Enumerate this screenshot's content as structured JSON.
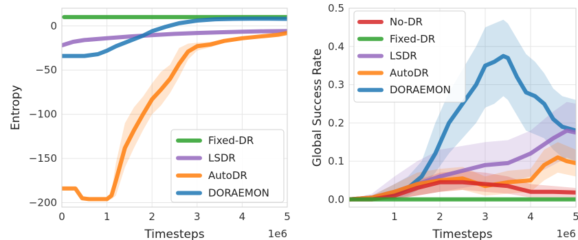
{
  "colors": {
    "No-DR": "#d62728",
    "Fixed-DR": "#2ca02c",
    "LSDR": "#9467bd",
    "AutoDR": "#ff7f0e",
    "DORAEMON": "#1f77b4"
  },
  "chart_data": [
    {
      "type": "line",
      "ylabel": "Entropy",
      "xlabel": "Timesteps",
      "x_scale_label": "1e6",
      "xlim": [
        0,
        5
      ],
      "ylim": [
        -205,
        20
      ],
      "x_ticks": [
        0,
        1,
        2,
        3,
        4,
        5
      ],
      "x_tick_labels": [
        "0",
        "1",
        "2",
        "3",
        "4",
        "5"
      ],
      "y_ticks": [
        0,
        -50,
        -100,
        -150,
        -200
      ],
      "y_tick_labels": [
        "0",
        "−50",
        "−100",
        "−150",
        "−200"
      ],
      "grid": true,
      "legend_position": "lower-right",
      "legend": [
        "Fixed-DR",
        "LSDR",
        "AutoDR",
        "DORAEMON"
      ],
      "series": [
        {
          "name": "Fixed-DR",
          "x": [
            0.05,
            5.0
          ],
          "y": [
            10,
            10
          ]
        },
        {
          "name": "LSDR",
          "x": [
            0,
            0.25,
            0.5,
            1.0,
            1.5,
            2.0,
            2.5,
            3.0,
            3.5,
            4.0,
            4.5,
            5.0
          ],
          "y": [
            -22,
            -18,
            -16,
            -14,
            -12,
            -10.5,
            -9,
            -8,
            -7.2,
            -6.6,
            -6.1,
            -5.8
          ]
        },
        {
          "name": "DORAEMON",
          "x": [
            0,
            0.5,
            0.8,
            1.0,
            1.2,
            1.5,
            1.8,
            2.0,
            2.3,
            2.6,
            3.0,
            3.4,
            3.8,
            4.2,
            4.6,
            5.0
          ],
          "y": [
            -34,
            -34,
            -32,
            -28,
            -23,
            -17,
            -11,
            -6,
            -1,
            3,
            6,
            7.5,
            8,
            8.2,
            8.2,
            8
          ],
          "band_lower": [
            -34,
            -34,
            -32,
            -28,
            -23,
            -17,
            -11,
            -6,
            -1,
            3,
            6,
            7.5,
            8,
            8.2,
            8.2,
            8
          ],
          "band_upper": [
            -34,
            -34,
            -32,
            -28,
            -23,
            -17,
            -11,
            -6,
            -1,
            3,
            6,
            7.5,
            8,
            8.2,
            8.2,
            8
          ]
        },
        {
          "name": "AutoDR",
          "x": [
            0,
            0.3,
            0.45,
            0.6,
            0.8,
            1.0,
            1.1,
            1.2,
            1.4,
            1.6,
            1.8,
            2.0,
            2.2,
            2.4,
            2.6,
            2.8,
            3.0,
            3.3,
            3.6,
            4.0,
            4.4,
            4.8,
            5.0
          ],
          "y": [
            -184,
            -184,
            -195,
            -196,
            -196,
            -196,
            -192,
            -175,
            -138,
            -118,
            -100,
            -83,
            -72,
            -60,
            -43,
            -29,
            -23,
            -21,
            -17,
            -14,
            -12,
            -10,
            -8
          ],
          "band_lower": [
            -184,
            -184,
            -196,
            -197,
            -197,
            -197,
            -196,
            -192,
            -160,
            -138,
            -118,
            -100,
            -90,
            -76,
            -58,
            -38,
            -28,
            -24,
            -19,
            -16,
            -13,
            -11,
            -9
          ],
          "band_upper": [
            -184,
            -184,
            -194,
            -195,
            -195,
            -195,
            -188,
            -155,
            -110,
            -92,
            -80,
            -65,
            -52,
            -44,
            -25,
            -20,
            -19,
            -18,
            -15,
            -12,
            -11,
            -9,
            -7
          ]
        }
      ]
    },
    {
      "type": "line",
      "ylabel": "Global Success Rate",
      "xlabel": "Timesteps",
      "x_scale_label": "1e6",
      "xlim": [
        0,
        5
      ],
      "ylim": [
        -0.02,
        0.5
      ],
      "x_ticks": [
        1,
        2,
        3,
        4,
        5
      ],
      "x_tick_labels": [
        "1",
        "2",
        "3",
        "4",
        "5"
      ],
      "y_ticks": [
        0.0,
        0.1,
        0.2,
        0.3,
        0.4,
        0.5
      ],
      "y_tick_labels": [
        "0.0",
        "0.1",
        "0.2",
        "0.3",
        "0.4",
        "0.5"
      ],
      "grid": true,
      "legend_position": "upper-left",
      "legend": [
        "No-DR",
        "Fixed-DR",
        "LSDR",
        "AutoDR",
        "DORAEMON"
      ],
      "series": [
        {
          "name": "No-DR",
          "x": [
            0,
            0.5,
            1.0,
            1.5,
            2.0,
            2.5,
            3.0,
            3.5,
            4.0,
            4.5,
            5.0
          ],
          "y": [
            0.0,
            0.0,
            0.01,
            0.03,
            0.045,
            0.045,
            0.04,
            0.035,
            0.02,
            0.02,
            0.018
          ],
          "band_lower": [
            0.0,
            0.0,
            0.0,
            0.01,
            0.02,
            0.025,
            0.02,
            0.015,
            0.005,
            0.005,
            0.005
          ],
          "band_upper": [
            0.0,
            0.01,
            0.02,
            0.05,
            0.07,
            0.075,
            0.07,
            0.06,
            0.04,
            0.035,
            0.03
          ]
        },
        {
          "name": "Fixed-DR",
          "x": [
            0,
            1.0,
            2.0,
            3.0,
            4.0,
            5.0
          ],
          "y": [
            0.0,
            0.0,
            0.0,
            0.0,
            0.0,
            0.0
          ]
        },
        {
          "name": "LSDR",
          "x": [
            0,
            0.5,
            1.0,
            1.5,
            2.0,
            2.5,
            3.0,
            3.5,
            4.0,
            4.5,
            4.8,
            5.0
          ],
          "y": [
            0.0,
            0.005,
            0.02,
            0.04,
            0.06,
            0.075,
            0.09,
            0.095,
            0.12,
            0.16,
            0.18,
            0.175
          ],
          "band_lower": [
            0.0,
            0.0,
            0.0,
            0.01,
            0.02,
            0.03,
            0.04,
            0.045,
            0.06,
            0.09,
            0.11,
            0.1
          ],
          "band_upper": [
            0.0,
            0.015,
            0.06,
            0.1,
            0.13,
            0.14,
            0.15,
            0.155,
            0.18,
            0.23,
            0.255,
            0.25
          ]
        },
        {
          "name": "AutoDR",
          "x": [
            0,
            0.5,
            1.0,
            1.5,
            2.0,
            2.5,
            3.0,
            3.5,
            4.0,
            4.3,
            4.6,
            4.8,
            5.0
          ],
          "y": [
            0.0,
            0.005,
            0.02,
            0.04,
            0.05,
            0.055,
            0.035,
            0.045,
            0.05,
            0.09,
            0.11,
            0.1,
            0.095
          ],
          "band_lower": [
            0.0,
            0.0,
            0.0,
            0.01,
            0.02,
            0.025,
            0.01,
            0.015,
            0.02,
            0.05,
            0.07,
            0.065,
            0.06
          ],
          "band_upper": [
            0.0,
            0.01,
            0.04,
            0.07,
            0.08,
            0.085,
            0.06,
            0.075,
            0.08,
            0.13,
            0.15,
            0.14,
            0.13
          ]
        },
        {
          "name": "DORAEMON",
          "x": [
            0,
            0.5,
            1.0,
            1.3,
            1.6,
            1.9,
            2.2,
            2.5,
            2.8,
            3.0,
            3.2,
            3.4,
            3.5,
            3.7,
            3.9,
            4.1,
            4.3,
            4.5,
            4.7,
            5.0
          ],
          "y": [
            0.0,
            0.005,
            0.015,
            0.03,
            0.06,
            0.12,
            0.2,
            0.25,
            0.3,
            0.35,
            0.36,
            0.375,
            0.37,
            0.32,
            0.28,
            0.27,
            0.25,
            0.21,
            0.19,
            0.18
          ],
          "band_lower": [
            0.0,
            0.0,
            0.0,
            0.01,
            0.03,
            0.07,
            0.12,
            0.16,
            0.2,
            0.24,
            0.25,
            0.27,
            0.26,
            0.22,
            0.18,
            0.17,
            0.16,
            0.13,
            0.11,
            0.1
          ],
          "band_upper": [
            0.0,
            0.01,
            0.04,
            0.06,
            0.1,
            0.2,
            0.28,
            0.34,
            0.4,
            0.45,
            0.46,
            0.47,
            0.46,
            0.42,
            0.38,
            0.36,
            0.33,
            0.29,
            0.27,
            0.26
          ]
        }
      ]
    }
  ]
}
